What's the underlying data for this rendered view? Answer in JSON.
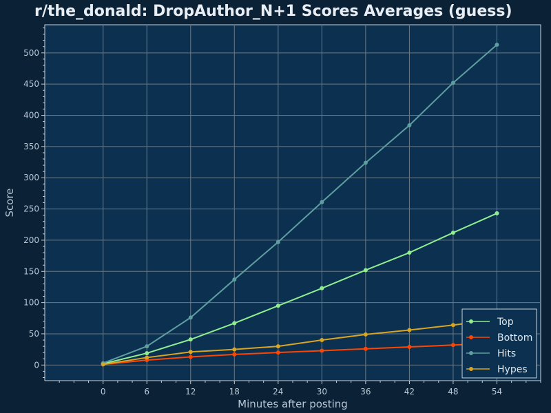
{
  "chart_data": {
    "type": "line",
    "title": "r/the_donald: DropAuthor_N+1 Scores Averages (guess)",
    "xlabel": "Minutes after posting",
    "ylabel": "Score",
    "x": [
      0,
      6,
      12,
      18,
      24,
      30,
      36,
      42,
      48,
      54
    ],
    "xlim": [
      -8,
      60
    ],
    "ylim": [
      -25,
      545
    ],
    "x_ticks": [
      0,
      6,
      12,
      18,
      24,
      30,
      36,
      42,
      48,
      54
    ],
    "y_ticks": [
      0,
      50,
      100,
      150,
      200,
      250,
      300,
      350,
      400,
      450,
      500
    ],
    "grid": true,
    "legend_position": "bottom-right",
    "series": [
      {
        "name": "Top",
        "color": "#90ee90",
        "values": [
          2,
          19,
          41,
          67,
          95,
          123,
          152,
          180,
          212,
          243
        ]
      },
      {
        "name": "Bottom",
        "color": "#ff4500",
        "values": [
          1,
          8,
          13,
          17,
          20,
          23,
          26,
          29,
          32,
          35
        ]
      },
      {
        "name": "Hits",
        "color": "#5f9ea0",
        "values": [
          3,
          30,
          76,
          137,
          197,
          261,
          324,
          384,
          452,
          513
        ]
      },
      {
        "name": "Hypes",
        "color": "#daa520",
        "values": [
          1,
          12,
          21,
          25,
          30,
          40,
          49,
          56,
          64,
          73
        ]
      }
    ]
  }
}
